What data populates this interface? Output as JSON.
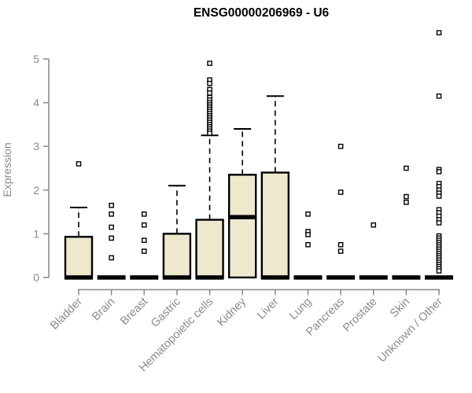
{
  "window": {
    "background": "#ffffff"
  },
  "chart_data": {
    "type": "boxplot",
    "title": "ENSG00000206969 - U6",
    "xlabel": "",
    "ylabel": "Expression",
    "ylim": [
      0,
      5.75
    ],
    "yticks": [
      0,
      1,
      2,
      3,
      4,
      5
    ],
    "grid": false,
    "legend": "none",
    "categories": [
      "Bladder",
      "Brain",
      "Breast",
      "Gastric",
      "Hematopoietic cells",
      "Kidney",
      "Liver",
      "Lung",
      "Pancreas",
      "Prostate",
      "Skin",
      "Unknown / Other"
    ],
    "series": [
      {
        "name": "Bladder",
        "q1": 0,
        "median": 0,
        "q3": 0.93,
        "whisker_low": 0,
        "whisker_high": 1.6,
        "outliers": [
          2.6
        ]
      },
      {
        "name": "Brain",
        "q1": 0,
        "median": 0,
        "q3": 0,
        "whisker_low": 0,
        "whisker_high": 0,
        "outliers": [
          1.65,
          1.45,
          1.15,
          0.9,
          0.45
        ]
      },
      {
        "name": "Breast",
        "q1": 0,
        "median": 0,
        "q3": 0,
        "whisker_low": 0,
        "whisker_high": 0,
        "outliers": [
          1.45,
          1.2,
          0.85,
          0.6
        ]
      },
      {
        "name": "Gastric",
        "q1": 0,
        "median": 0,
        "q3": 1.0,
        "whisker_low": 0,
        "whisker_high": 2.1,
        "outliers": []
      },
      {
        "name": "Hematopoietic cells",
        "q1": 0,
        "median": 0,
        "q3": 1.32,
        "whisker_low": 0,
        "whisker_high": 3.25,
        "outliers": [
          4.9,
          4.52,
          4.44,
          4.3,
          4.22,
          4.12,
          4.06,
          4.0,
          3.95,
          3.9,
          3.85,
          3.8,
          3.75,
          3.7,
          3.65,
          3.6,
          3.55,
          3.5,
          3.45,
          3.4,
          3.35,
          3.3
        ]
      },
      {
        "name": "Kidney",
        "q1": 0,
        "median": 1.38,
        "q3": 2.35,
        "whisker_low": 0,
        "whisker_high": 3.4,
        "outliers": []
      },
      {
        "name": "Liver",
        "q1": 0,
        "median": 0,
        "q3": 2.4,
        "whisker_low": 0,
        "whisker_high": 4.15,
        "outliers": []
      },
      {
        "name": "Lung",
        "q1": 0,
        "median": 0,
        "q3": 0,
        "whisker_low": 0,
        "whisker_high": 0,
        "outliers": [
          1.45,
          1.05,
          0.98,
          0.75
        ]
      },
      {
        "name": "Pancreas",
        "q1": 0,
        "median": 0,
        "q3": 0,
        "whisker_low": 0,
        "whisker_high": 0,
        "outliers": [
          3.0,
          1.95,
          0.75,
          0.6
        ]
      },
      {
        "name": "Prostate",
        "q1": 0,
        "median": 0,
        "q3": 0,
        "whisker_low": 0,
        "whisker_high": 0,
        "outliers": [
          1.2
        ]
      },
      {
        "name": "Skin",
        "q1": 0,
        "median": 0,
        "q3": 0,
        "whisker_low": 0,
        "whisker_high": 0,
        "outliers": [
          2.5,
          1.85,
          1.72
        ]
      },
      {
        "name": "Unknown / Other",
        "q1": 0,
        "median": 0,
        "q3": 0,
        "whisker_low": 0,
        "whisker_high": 0,
        "outliers": [
          5.6,
          4.15,
          2.47,
          2.42,
          2.15,
          2.08,
          2.0,
          1.93,
          1.86,
          1.55,
          1.48,
          1.4,
          1.32,
          1.25,
          0.95,
          0.9,
          0.85,
          0.8,
          0.75,
          0.7,
          0.65,
          0.6,
          0.55,
          0.5,
          0.45,
          0.4,
          0.35,
          0.3,
          0.25,
          0.2,
          0.15
        ]
      }
    ],
    "style": {
      "box_fill": "#EEE8CD",
      "box_stroke": "#000000",
      "median_color": "#000000",
      "whisker_color": "#000000",
      "axis_color": "#878787",
      "label_color": "#8A8A8A",
      "title_color": "#000000",
      "outlier_shape": "open-square"
    }
  }
}
